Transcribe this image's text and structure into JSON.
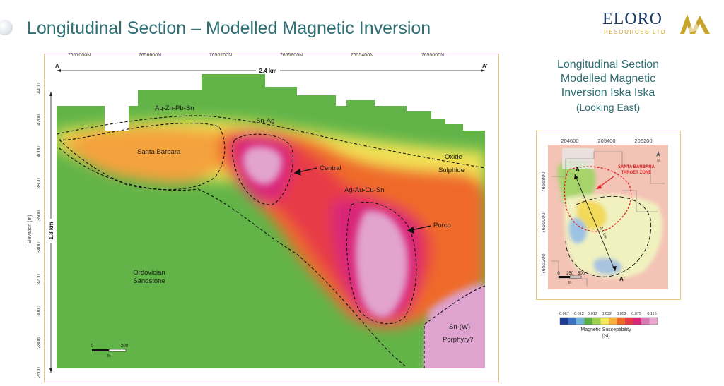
{
  "slide": {
    "title": "Longitudinal Section – Modelled Magnetic Inversion"
  },
  "logo": {
    "wordmark": "ELORO",
    "subtitle": "RESOURCES LTD.",
    "colors": {
      "navy": "#1b3a68",
      "gold": "#c9a42b"
    }
  },
  "section": {
    "northings": [
      "7657000N",
      "7656600N",
      "7656200N",
      "7655800N",
      "7655400N",
      "7655000N"
    ],
    "start_label": "A",
    "end_label": "A'",
    "width_label": "2.4 km",
    "height_label": "1.8 km",
    "elevation_axis_label": "Elevation (m)",
    "elevation_ticks": [
      "4400",
      "4200",
      "4000",
      "3800",
      "3600",
      "3400",
      "3200",
      "3000",
      "2800",
      "2600"
    ],
    "labels": {
      "ag_zn_pb_sn": "Ag-Zn-Pb-Sn",
      "sn_ag": "Sn-Ag",
      "santa_barbara": "Santa Barbara",
      "central": "Central",
      "oxide": "Oxide",
      "sulphide": "Sulphide",
      "ag_au_cu_sn": "Ag-Au-Cu-Sn",
      "porco": "Porco",
      "ordovician": "Ordovician",
      "sandstone": "Sandstone",
      "sn_w": "Sn-(W)",
      "porphyry": "Porphyry?"
    },
    "scale_bar": {
      "min": "0",
      "max": "200",
      "unit": "m"
    }
  },
  "side_panel": {
    "title_lines": [
      "Longitudinal Section",
      "Modelled Magnetic",
      "Inversion Iska Iska",
      "(Looking East)"
    ]
  },
  "inset_map": {
    "eastings": [
      "204600",
      "205400",
      "206200"
    ],
    "northings": [
      "7656800",
      "7656000",
      "7655200"
    ],
    "target_zone_line1": "SANTA BARBARA",
    "target_zone_line2": "TARGET ZONE",
    "section_length": "2.4 km",
    "start_label": "A",
    "end_label": "A'",
    "scale_bar": {
      "labels": [
        "0",
        "250",
        "500"
      ],
      "unit": "m"
    },
    "north_label": "N"
  },
  "legend": {
    "ticks": [
      "-0.067",
      "-0.012",
      "0.012",
      "0.032",
      "0.052",
      "0.075",
      "0.116"
    ],
    "title": "Magnetic Susceptibility",
    "unit": "(SI)",
    "colors": [
      "#1d3f93",
      "#3c73c4",
      "#72b4d6",
      "#5cae48",
      "#9fcf4d",
      "#f0ea56",
      "#f7b23b",
      "#ef6a2a",
      "#e73a46",
      "#d9287a",
      "#d97ab8",
      "#e7a9d2"
    ]
  }
}
